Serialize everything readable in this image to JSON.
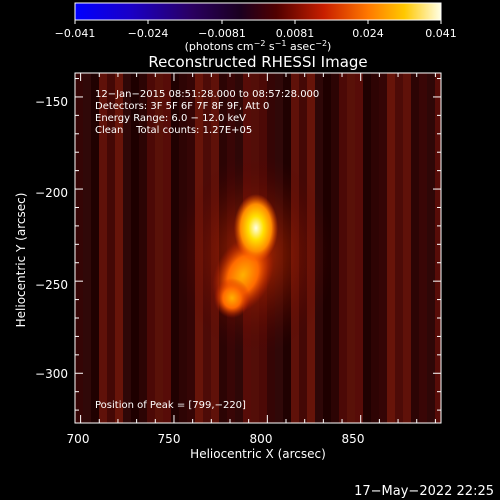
{
  "colorbar": {
    "tick_labels": [
      "−0.041",
      "−0.024",
      "−0.0081",
      "0.0081",
      "0.024",
      "0.041"
    ],
    "units_prefix": "(photons cm",
    "units_exp1": "−2",
    "units_mid": " s",
    "units_exp2": "−1",
    "units_mid2": " asec",
    "units_exp3": "−2",
    "units_suffix": ")"
  },
  "plot": {
    "title": "Reconstructed RHESSI Image",
    "xlabel": "Heliocentric X (arcsec)",
    "ylabel": "Heliocentric Y (arcsec)",
    "xticks": [
      "700",
      "750",
      "800",
      "850"
    ],
    "yticks": [
      "−150",
      "−200",
      "−250",
      "−300"
    ],
    "xlim": [
      697,
      893
    ],
    "ylim": [
      -327,
      -137
    ],
    "info_lines": [
      "12−Jan−2015 08:51:28.000 to 08:57:28.000",
      "Detectors: 3F 5F 6F 7F 8F 9F, Att 0",
      "Energy Range: 6.0 − 12.0 keV",
      "Clean    Total counts: 1.27E+05"
    ],
    "peak_text": "Position of Peak = [799,−220]",
    "peak": {
      "x": 799,
      "y": -220
    }
  },
  "timestamp": "17−May−2022 22:25"
}
